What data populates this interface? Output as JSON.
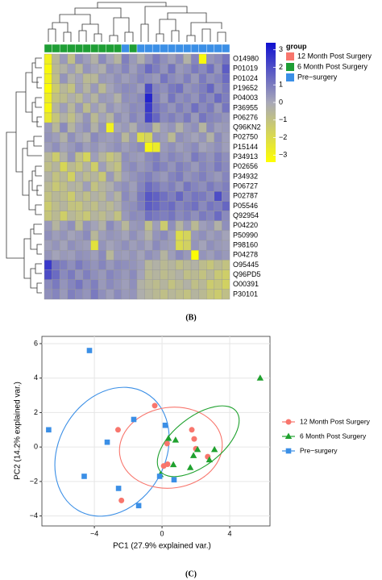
{
  "chart_data": [
    {
      "type": "heatmap",
      "rows": [
        "O14980",
        "P01019",
        "P01024",
        "P19652",
        "P04003",
        "P36955",
        "P06276",
        "Q96KN2",
        "P02750",
        "P15144",
        "P34913",
        "P02656",
        "P34932",
        "P06727",
        "P02787",
        "P05546",
        "Q92954",
        "P04220",
        "P50990",
        "P98160",
        "P04278",
        "O95445",
        "Q96PD5",
        "O00391",
        "P30101"
      ],
      "values": [
        [
          -2.5,
          -0.5,
          0.3,
          -0.8,
          0.5,
          0.2,
          -0.3,
          0.6,
          0.1,
          -0.4,
          0.8,
          0.3,
          -0.2,
          0.4,
          0.9,
          0.5,
          0.2,
          0.6,
          -0.3,
          0.7,
          -2.8,
          0.4,
          0.6,
          1.0
        ],
        [
          -2.8,
          -0.6,
          -0.3,
          0.2,
          -0.5,
          0.4,
          0.1,
          -0.2,
          0.5,
          0.3,
          0.7,
          0.2,
          0.6,
          1.2,
          0.8,
          0.4,
          1.0,
          0.3,
          0.5,
          0.9,
          0.6,
          1.1,
          0.4,
          1.5
        ],
        [
          -2.6,
          -0.8,
          0.4,
          -0.3,
          0.1,
          -0.6,
          -0.5,
          0.3,
          0.2,
          0.5,
          0.2,
          0.4,
          0.7,
          0.5,
          0.3,
          1.0,
          0.6,
          0.4,
          0.8,
          0.3,
          0.9,
          0.5,
          0.7,
          1.2
        ],
        [
          -2.9,
          -1.2,
          -0.5,
          -0.9,
          0.2,
          -0.4,
          0.3,
          -0.6,
          0.1,
          0.4,
          0.6,
          0.5,
          0.2,
          1.8,
          0.7,
          0.5,
          0.9,
          1.1,
          0.4,
          0.6,
          0.8,
          1.3,
          0.5,
          0.9
        ],
        [
          -2.4,
          -0.9,
          -0.7,
          -0.2,
          -0.6,
          0.1,
          -0.4,
          0.3,
          0.2,
          -0.3,
          0.5,
          0.4,
          0.6,
          2.6,
          0.8,
          0.3,
          1.0,
          0.5,
          0.7,
          0.4,
          0.9,
          0.6,
          1.2,
          0.8
        ],
        [
          -2.7,
          -0.4,
          0.2,
          -0.5,
          0.3,
          -0.7,
          0.2,
          -0.3,
          0.4,
          0.1,
          0.3,
          0.6,
          0.5,
          2.2,
          1.0,
          0.7,
          0.4,
          0.8,
          0.5,
          1.1,
          0.6,
          0.9,
          0.3,
          1.0
        ],
        [
          -2.2,
          -1.0,
          -0.3,
          -0.8,
          -0.2,
          0.4,
          -0.6,
          0.1,
          -0.4,
          0.5,
          0.2,
          0.7,
          0.4,
          2.0,
          1.3,
          0.6,
          0.8,
          0.5,
          0.9,
          0.3,
          1.0,
          0.7,
          0.6,
          0.4
        ],
        [
          0.3,
          -0.5,
          0.6,
          -0.4,
          0.2,
          0.5,
          -0.3,
          0.4,
          -2.5,
          0.1,
          0.3,
          -0.2,
          0.5,
          0.6,
          -0.5,
          0.2,
          0.4,
          -0.3,
          0.3,
          0.5,
          -0.4,
          0.6,
          0.2,
          0.3
        ],
        [
          0.4,
          0.2,
          -0.3,
          0.5,
          0.1,
          -0.2,
          0.6,
          0.3,
          0.2,
          0.4,
          -0.5,
          0.3,
          -1.8,
          -1.5,
          0.4,
          0.2,
          -0.6,
          0.5,
          0.3,
          0.1,
          0.4,
          -0.3,
          0.6,
          0.2
        ],
        [
          0.2,
          0.5,
          0.1,
          0.3,
          0.6,
          0.2,
          0.4,
          0.1,
          0.3,
          0.5,
          0.2,
          0.4,
          0.6,
          -2.7,
          -2.3,
          0.3,
          0.5,
          0.2,
          0.4,
          0.6,
          0.1,
          0.3,
          0.5,
          0.2
        ],
        [
          -0.5,
          -1.2,
          -0.3,
          0.4,
          -0.8,
          -1.5,
          0.2,
          -0.4,
          -1.0,
          -0.6,
          0.5,
          0.3,
          0.2,
          0.6,
          0.8,
          0.4,
          0.7,
          0.5,
          0.3,
          0.9,
          0.6,
          0.4,
          0.8,
          0.5
        ],
        [
          -0.8,
          -0.4,
          -1.6,
          -0.6,
          -1.0,
          -0.3,
          -1.3,
          0.2,
          -0.5,
          -0.9,
          0.4,
          0.6,
          0.3,
          0.5,
          0.9,
          0.7,
          0.4,
          0.8,
          0.6,
          0.3,
          0.7,
          0.5,
          0.9,
          0.6
        ],
        [
          -0.3,
          -0.9,
          -0.5,
          -1.4,
          -0.2,
          -0.7,
          -0.4,
          -1.1,
          0.3,
          -0.5,
          0.2,
          0.4,
          0.6,
          0.8,
          0.5,
          0.3,
          0.7,
          0.9,
          0.4,
          0.6,
          0.8,
          0.5,
          0.3,
          0.7
        ],
        [
          -0.6,
          -1.1,
          -0.8,
          -0.3,
          -0.5,
          0.2,
          -0.9,
          -0.4,
          -0.2,
          0.3,
          0.5,
          0.2,
          0.7,
          1.2,
          0.9,
          0.6,
          0.8,
          0.4,
          1.0,
          0.7,
          0.5,
          0.9,
          0.6,
          0.8
        ],
        [
          -0.9,
          -0.5,
          -0.7,
          -1.2,
          -0.4,
          -0.8,
          -0.3,
          -0.6,
          0.1,
          -0.4,
          0.6,
          0.3,
          0.9,
          1.6,
          1.4,
          1.1,
          0.8,
          1.3,
          0.7,
          1.0,
          0.9,
          0.6,
          1.8,
          0.8
        ],
        [
          -1.2,
          -0.7,
          -0.4,
          -0.9,
          -1.0,
          -0.5,
          -0.8,
          -0.3,
          -0.6,
          -0.2,
          0.4,
          0.5,
          0.8,
          1.5,
          1.3,
          1.0,
          1.2,
          0.7,
          0.9,
          1.1,
          0.6,
          1.0,
          0.8,
          1.3
        ],
        [
          -1.0,
          -0.6,
          -1.3,
          -0.5,
          -0.8,
          -1.1,
          -0.4,
          -0.7,
          -0.3,
          -0.9,
          0.3,
          0.6,
          0.5,
          1.1,
          0.9,
          0.8,
          1.0,
          0.6,
          0.8,
          0.5,
          0.9,
          0.7,
          1.2,
          0.6
        ],
        [
          0.3,
          -0.4,
          0.2,
          0.5,
          -0.6,
          0.4,
          0.1,
          -0.3,
          0.6,
          0.2,
          -0.5,
          0.3,
          0.4,
          -0.8,
          0.2,
          -1.2,
          0.5,
          -0.4,
          0.3,
          -0.6,
          0.2,
          0.4,
          -0.3,
          0.5
        ],
        [
          0.5,
          0.2,
          0.4,
          0.1,
          0.3,
          0.6,
          -0.5,
          0.2,
          0.4,
          0.3,
          0.1,
          0.5,
          0.2,
          -0.3,
          0.4,
          0.6,
          0.2,
          -1.8,
          -1.5,
          0.3,
          0.5,
          0.2,
          0.4,
          0.1
        ],
        [
          0.2,
          0.4,
          0.1,
          0.5,
          0.3,
          0.2,
          -2.0,
          0.4,
          0.1,
          0.3,
          0.5,
          0.2,
          0.4,
          0.1,
          0.6,
          0.3,
          0.2,
          -1.7,
          -1.4,
          0.4,
          0.1,
          0.5,
          0.3,
          0.2
        ],
        [
          0.4,
          0.1,
          0.3,
          0.2,
          0.5,
          0.4,
          0.2,
          0.6,
          -0.5,
          0.3,
          0.2,
          0.4,
          0.1,
          0.5,
          0.3,
          -0.4,
          0.2,
          0.6,
          0.3,
          -2.9,
          0.4,
          0.2,
          0.5,
          0.3
        ],
        [
          2.2,
          1.0,
          0.8,
          0.5,
          0.9,
          0.6,
          0.4,
          0.7,
          0.3,
          0.6,
          0.5,
          0.4,
          0.2,
          -0.5,
          -0.3,
          -0.6,
          -0.4,
          -0.8,
          -0.5,
          -0.3,
          -0.7,
          -1.0,
          -0.6,
          -0.9
        ],
        [
          1.8,
          1.2,
          0.6,
          0.9,
          0.4,
          0.8,
          0.5,
          0.3,
          0.7,
          0.5,
          0.3,
          0.6,
          0.1,
          -0.6,
          -0.4,
          -0.7,
          -0.5,
          -0.3,
          -0.8,
          -0.6,
          -0.9,
          -0.5,
          -1.1,
          -1.3
        ],
        [
          0.6,
          0.9,
          0.4,
          0.7,
          1.0,
          0.5,
          0.8,
          0.3,
          0.6,
          0.4,
          0.2,
          0.5,
          -0.3,
          -0.5,
          -0.7,
          -0.4,
          -0.9,
          -0.6,
          -0.3,
          -0.8,
          -0.5,
          -1.2,
          -1.0,
          -1.4
        ],
        [
          0.5,
          0.7,
          0.3,
          0.8,
          0.6,
          0.4,
          0.9,
          0.5,
          0.2,
          0.6,
          0.3,
          0.4,
          -0.2,
          -0.4,
          -0.6,
          -0.8,
          -0.5,
          -0.7,
          -0.9,
          -0.4,
          -0.6,
          -1.0,
          -1.2,
          -0.8
        ]
      ],
      "column_groups": [
        1,
        1,
        1,
        1,
        1,
        1,
        1,
        1,
        1,
        1,
        2,
        1,
        2,
        2,
        2,
        2,
        2,
        2,
        2,
        2,
        2,
        2,
        2,
        2
      ],
      "legend_title": "group",
      "groups": [
        {
          "name": "12 Month Post Surgery",
          "color": "#f8766d"
        },
        {
          "name": "6 Month Post Surgery",
          "color": "#1f9e35"
        },
        {
          "name": "Pre−surgery",
          "color": "#3b8fe6"
        }
      ],
      "colors": [
        "#ffff00",
        "#a8a8b8",
        "#1010d0"
      ],
      "zlim": [
        -3.4,
        3.4
      ],
      "zticks": [
        {
          "value": 3,
          "label": "3"
        },
        {
          "value": 2,
          "label": "2"
        },
        {
          "value": 1,
          "label": "1"
        },
        {
          "value": 0,
          "label": "0"
        },
        {
          "value": -1,
          "label": "−1"
        },
        {
          "value": -2,
          "label": "−2"
        },
        {
          "value": -3,
          "label": "−3"
        }
      ],
      "caption": "(B)"
    },
    {
      "type": "scatter",
      "xlabel": "PC1 (27.9% explained var.)",
      "ylabel": "PC2 (14.2% explained var.)",
      "xlim": [
        -7.1,
        6.38
      ],
      "ylim": [
        -4.58,
        6.42
      ],
      "xticks": [
        {
          "value": -4,
          "label": "−4"
        },
        0,
        4
      ],
      "yticks": [
        {
          "value": -4,
          "label": "−4"
        },
        {
          "value": -2,
          "label": "−2"
        },
        0,
        2,
        4,
        6
      ],
      "grid": true,
      "series": [
        {
          "name": "12 Month Post Surgery",
          "color": "#f8766d",
          "marker": "circle",
          "x": [
            -0.43,
            -2.6,
            -2.4,
            0.33,
            1.9,
            2.0,
            1.76,
            2.7,
            0.3,
            0.1
          ],
          "y": [
            2.4,
            1.0,
            -3.1,
            -1.0,
            0.47,
            -0.1,
            1.0,
            -0.56,
            0.2,
            -1.1
          ]
        },
        {
          "name": "6 Month Post Surgery",
          "color": "#1fa12e",
          "marker": "triangle",
          "x": [
            5.8,
            0.38,
            0.8,
            2.1,
            3.1,
            1.86,
            1.67,
            2.8,
            -0.1,
            0.67
          ],
          "y": [
            4.0,
            0.5,
            0.4,
            -0.15,
            -0.15,
            -0.5,
            -1.2,
            -0.75,
            -1.6,
            -1.03
          ]
        },
        {
          "name": "Pre−surgery",
          "color": "#3b8fe6",
          "marker": "square",
          "x": [
            -4.29,
            -6.7,
            -3.24,
            -1.67,
            0.19,
            -4.6,
            -2.57,
            -1.38,
            -0.14,
            0.71
          ],
          "y": [
            5.6,
            1.0,
            0.28,
            1.6,
            1.26,
            -1.7,
            -2.4,
            -3.4,
            -1.7,
            -1.9
          ]
        }
      ],
      "caption": "(C)"
    }
  ]
}
